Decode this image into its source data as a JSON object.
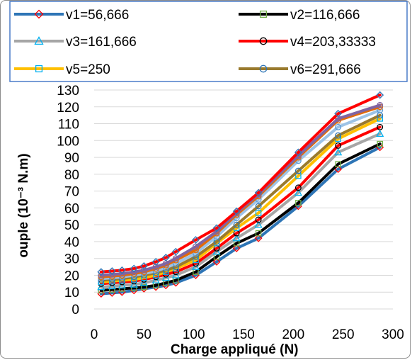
{
  "chart_data": {
    "type": "line",
    "title": "",
    "xlabel": "Charge appliqué (N)",
    "ylabel": "ouple (10⁻³ N.m)",
    "xlim": [
      0,
      300
    ],
    "ylim": [
      0,
      130
    ],
    "x_ticks": [
      "0",
      "50",
      "100",
      "150",
      "200",
      "250",
      "300"
    ],
    "y_ticks": [
      "0",
      "10",
      "20",
      "30",
      "40",
      "50",
      "60",
      "70",
      "80",
      "90",
      "100",
      "110",
      "120",
      "130"
    ],
    "grid": "horizontal",
    "legend_position": "top",
    "x": [
      7,
      18,
      28,
      40,
      50,
      62,
      72,
      82,
      102,
      123,
      143,
      165,
      205,
      245,
      287
    ],
    "series": [
      {
        "name": "v1=56,666",
        "color": "#2e75b6",
        "marker": "diamond",
        "marker_color": "#ff0000",
        "values": [
          9,
          9.5,
          10,
          11,
          12,
          13,
          14,
          15.5,
          20,
          28,
          36,
          42,
          61,
          83,
          96
        ]
      },
      {
        "name": "v2=116,666",
        "color": "#000000",
        "marker": "square",
        "marker_color": "#70ad47",
        "values": [
          11,
          11.5,
          12,
          12.5,
          13,
          14,
          15.5,
          17,
          22,
          31,
          39,
          45,
          63,
          86,
          98
        ]
      },
      {
        "name": "v3=161,666",
        "color": "#a6a6a6",
        "marker": "triangle",
        "marker_color": "#00b0f0",
        "values": [
          13,
          13.5,
          14,
          14.5,
          15.5,
          17,
          18.5,
          20,
          25,
          34,
          42,
          50,
          69,
          93,
          104
        ]
      },
      {
        "name": "v4=203,33333",
        "color": "#ff0000",
        "marker": "circle",
        "marker_color": "#000000",
        "values": [
          15,
          15.5,
          16,
          16.5,
          17.5,
          19,
          20.5,
          22,
          27,
          36,
          45,
          53,
          72,
          97,
          108
        ]
      },
      {
        "name": "v5=250",
        "color": "#ffc000",
        "marker": "square",
        "marker_color": "#00b0f0",
        "values": [
          16,
          16.5,
          17,
          17.5,
          18.5,
          20,
          22,
          24,
          29,
          39,
          48,
          57,
          79,
          101,
          113
        ]
      },
      {
        "name": "v6=291,666",
        "color": "#997a2e",
        "marker": "circle",
        "marker_color": "#2e75b6",
        "values": [
          17,
          17.5,
          18,
          19,
          20,
          21.5,
          23,
          25,
          31,
          40,
          50,
          61,
          82,
          103,
          115
        ]
      },
      {
        "color": "#9dc3e6",
        "marker": "circle",
        "marker_color": "#5b9bd5",
        "values": [
          18,
          18.5,
          19,
          20,
          21,
          22.5,
          24.5,
          27,
          33,
          43,
          54,
          65,
          88,
          108,
          118
        ]
      },
      {
        "color": "#e26b0a",
        "marker": "circle",
        "marker_color": "#e26b0a",
        "values": [
          19,
          19.5,
          20,
          21,
          22,
          24,
          26,
          29,
          35,
          45,
          56,
          67,
          90,
          112,
          120
        ]
      },
      {
        "color": "#8064a2",
        "marker": "circle",
        "marker_color": "#8064a2",
        "values": [
          20,
          20.5,
          21,
          22,
          23,
          25,
          27,
          30,
          37,
          46,
          57,
          68,
          91,
          113,
          121
        ]
      },
      {
        "color": "#ff0000",
        "marker": "diamond",
        "marker_color": "#2e75b6",
        "values": [
          22,
          22.5,
          23,
          24,
          25.5,
          28,
          30.5,
          34,
          41,
          48,
          58,
          69,
          93,
          116,
          127
        ]
      }
    ]
  }
}
